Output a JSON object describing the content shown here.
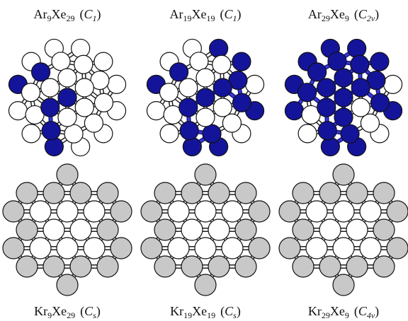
{
  "panels": [
    {
      "label": {
        "atoms": [
          {
            "symbol": "Ar",
            "count": "9"
          },
          {
            "symbol": "Xe",
            "count": "29"
          }
        ],
        "paren_open": "(",
        "group": "C",
        "group_index": "1",
        "paren_close": ")"
      }
    },
    {
      "label": {
        "atoms": [
          {
            "symbol": "Ar",
            "count": "19"
          },
          {
            "symbol": "Xe",
            "count": "19"
          }
        ],
        "paren_open": "(",
        "group": "C",
        "group_index": "1",
        "paren_close": ")"
      }
    },
    {
      "label": {
        "atoms": [
          {
            "symbol": "Ar",
            "count": "29"
          },
          {
            "symbol": "Xe",
            "count": "9"
          }
        ],
        "paren_open": "(",
        "group": "C",
        "group_index": "2v",
        "paren_close": ")"
      }
    },
    {
      "label": {
        "atoms": [
          {
            "symbol": "Kr",
            "count": "9"
          },
          {
            "symbol": "Xe",
            "count": "29"
          }
        ],
        "paren_open": "(",
        "group": "C",
        "group_index": "s",
        "paren_close": ")"
      }
    },
    {
      "label": {
        "atoms": [
          {
            "symbol": "Kr",
            "count": "19"
          },
          {
            "symbol": "Xe",
            "count": "19"
          }
        ],
        "paren_open": "(",
        "group": "C",
        "group_index": "s",
        "paren_close": ")"
      }
    },
    {
      "label": {
        "atoms": [
          {
            "symbol": "Kr",
            "count": "29"
          },
          {
            "symbol": "Xe",
            "count": "9"
          }
        ],
        "paren_open": "(",
        "group": "C",
        "group_index": "4v",
        "paren_close": ")"
      }
    }
  ]
}
